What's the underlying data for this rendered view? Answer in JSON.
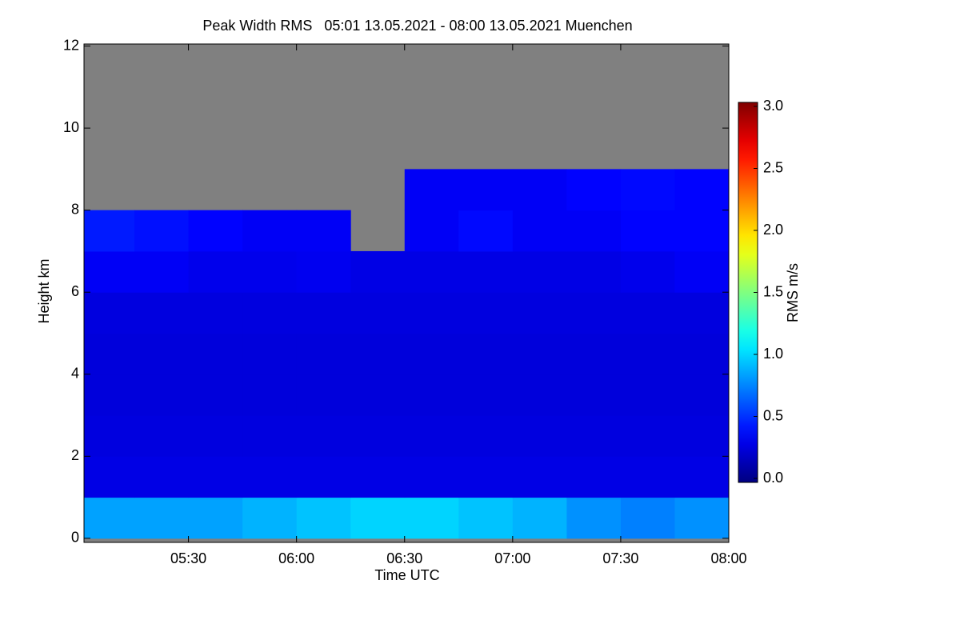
{
  "chart_data": {
    "type": "heatmap",
    "title": "Peak Width RMS   05:01 13.05.2021 - 08:00 13.05.2021 Muenchen",
    "x_label": "Time UTC",
    "y_label": "Height km",
    "colorbar_label": "RMS m/s",
    "colormap": "jet",
    "no_data_color": "#808080",
    "xlim": [
      301,
      480
    ],
    "xticks": [
      {
        "value": 330,
        "label": "05:30"
      },
      {
        "value": 360,
        "label": "06:00"
      },
      {
        "value": 390,
        "label": "06:30"
      },
      {
        "value": 420,
        "label": "07:00"
      },
      {
        "value": 450,
        "label": "07:30"
      },
      {
        "value": 480,
        "label": "08:00"
      }
    ],
    "ylim": [
      -0.1,
      12.05
    ],
    "yticks": [
      0,
      2,
      4,
      6,
      8,
      10,
      12
    ],
    "zlim": [
      0,
      3
    ],
    "zticks": [
      {
        "value": 0,
        "label": "0.0"
      },
      {
        "value": 0.5,
        "label": "0.5"
      },
      {
        "value": 1,
        "label": "1.0"
      },
      {
        "value": 1.5,
        "label": "1.5"
      },
      {
        "value": 2,
        "label": "2.0"
      },
      {
        "value": 2.5,
        "label": "2.5"
      },
      {
        "value": 3,
        "label": "3.0"
      }
    ],
    "x_bins": [
      301,
      315,
      330,
      345,
      360,
      375,
      390,
      405,
      420,
      435,
      450,
      465,
      480
    ],
    "y_bins": [
      0,
      1,
      2,
      3,
      4,
      5,
      6,
      7,
      8,
      9,
      10,
      11,
      12
    ],
    "values": [
      [
        0.85,
        0.85,
        0.85,
        0.9,
        0.95,
        1.0,
        1.0,
        0.95,
        0.9,
        0.8,
        0.75,
        0.8
      ],
      [
        0.3,
        0.3,
        0.3,
        0.3,
        0.3,
        0.3,
        0.3,
        0.3,
        0.3,
        0.3,
        0.3,
        0.3
      ],
      [
        0.28,
        0.28,
        0.28,
        0.28,
        0.28,
        0.28,
        0.28,
        0.28,
        0.28,
        0.28,
        0.28,
        0.28
      ],
      [
        0.27,
        0.27,
        0.27,
        0.27,
        0.27,
        0.27,
        0.27,
        0.27,
        0.27,
        0.27,
        0.27,
        0.27
      ],
      [
        0.27,
        0.27,
        0.27,
        0.27,
        0.27,
        0.27,
        0.27,
        0.27,
        0.27,
        0.27,
        0.27,
        0.27
      ],
      [
        0.28,
        0.28,
        0.28,
        0.28,
        0.28,
        0.28,
        0.28,
        0.28,
        0.28,
        0.28,
        0.28,
        0.28
      ],
      [
        0.35,
        0.35,
        0.32,
        0.32,
        0.33,
        0.3,
        0.3,
        0.3,
        0.3,
        0.3,
        0.32,
        0.35
      ],
      [
        0.45,
        0.42,
        0.38,
        0.35,
        0.35,
        null,
        0.35,
        0.4,
        0.35,
        0.35,
        0.38,
        0.38
      ],
      [
        null,
        null,
        null,
        null,
        null,
        null,
        0.35,
        0.35,
        0.35,
        0.38,
        0.4,
        0.38
      ],
      [
        null,
        null,
        null,
        null,
        null,
        null,
        null,
        null,
        null,
        null,
        null,
        null
      ],
      [
        null,
        null,
        null,
        null,
        null,
        null,
        null,
        null,
        null,
        null,
        null,
        null
      ],
      [
        null,
        null,
        null,
        null,
        null,
        null,
        null,
        null,
        null,
        null,
        null,
        null
      ]
    ]
  }
}
